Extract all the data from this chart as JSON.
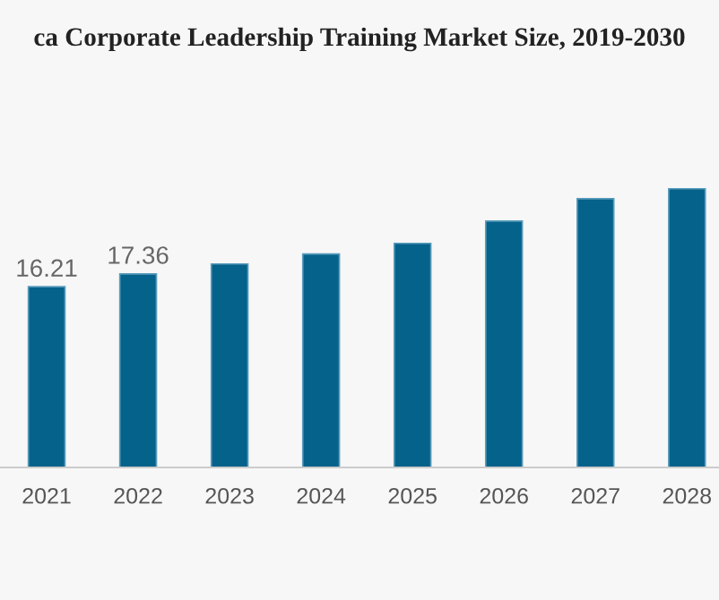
{
  "chart_data": {
    "type": "bar",
    "title": "ca Corporate Leadership Training Market Size, 2019-2030",
    "categories": [
      "2021",
      "2022",
      "2023",
      "2024",
      "2025",
      "2026",
      "2027",
      "2028"
    ],
    "values": [
      16.21,
      17.36,
      18.25,
      19.15,
      20.1,
      22.1,
      24.1,
      25.0
    ],
    "value_labels": [
      "16.21",
      "17.36",
      null,
      null,
      null,
      null,
      null,
      null
    ],
    "color": "#05628a",
    "grid": false,
    "legend": false
  }
}
